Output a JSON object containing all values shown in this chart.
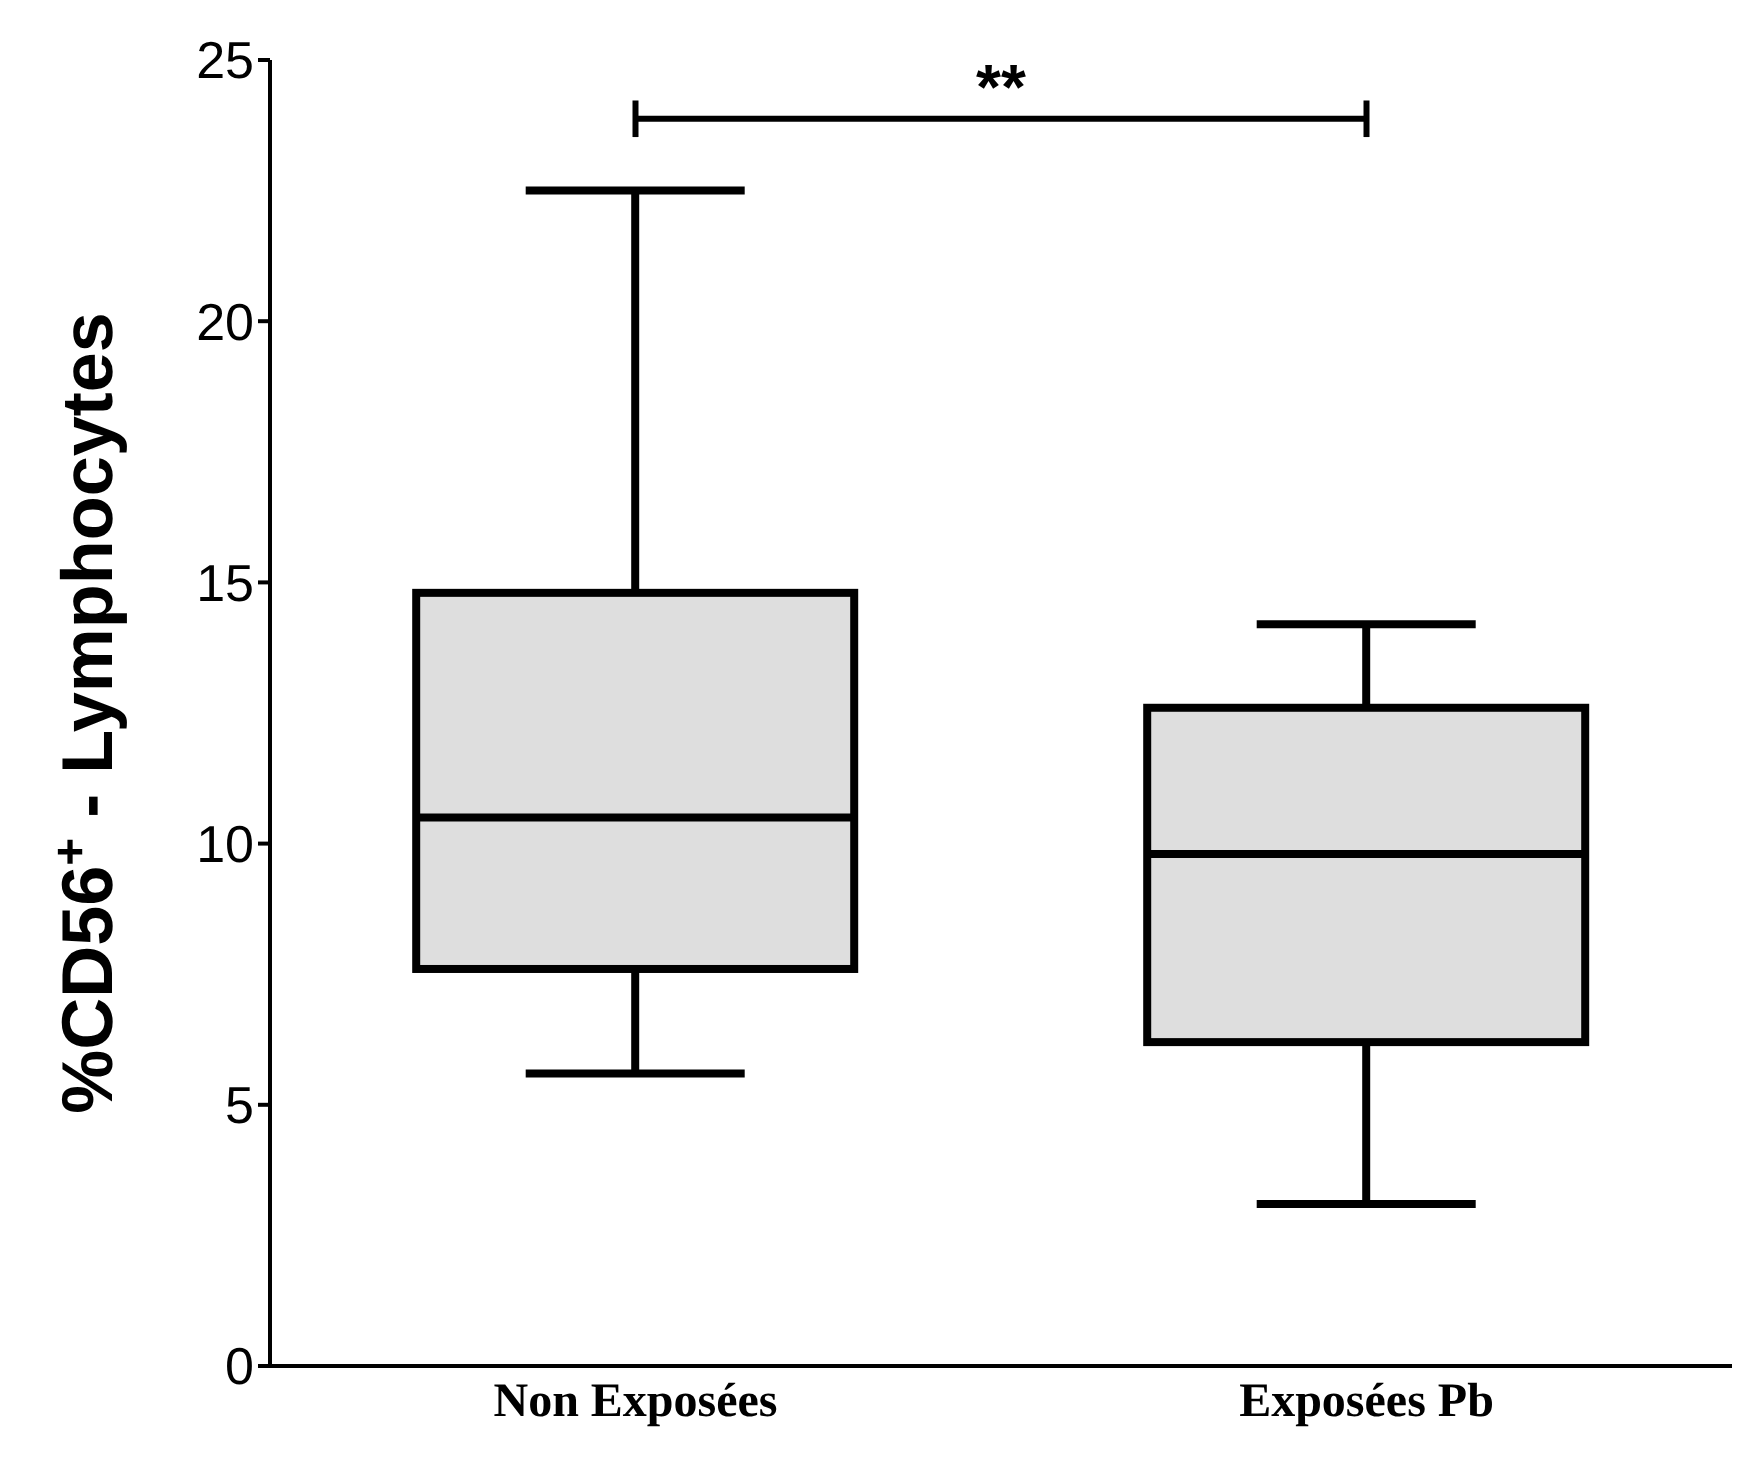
{
  "chart_data": {
    "type": "box",
    "ylabel": "%CD56$^{+}$ - Lymphocytes",
    "categories": [
      "Non Exposées",
      "Exposées Pb"
    ],
    "color": "#dedede",
    "boxes": [
      {
        "low": 5.6,
        "q1": 7.6,
        "median": 10.5,
        "q3": 14.8,
        "high": 22.5
      },
      {
        "low": 3.1,
        "q1": 6.2,
        "median": 9.8,
        "q3": 12.6,
        "high": 14.2
      }
    ],
    "ylim": [
      0,
      25
    ],
    "yticks": [
      0,
      5,
      10,
      15,
      20,
      25
    ],
    "annotations": [
      "**"
    ]
  }
}
